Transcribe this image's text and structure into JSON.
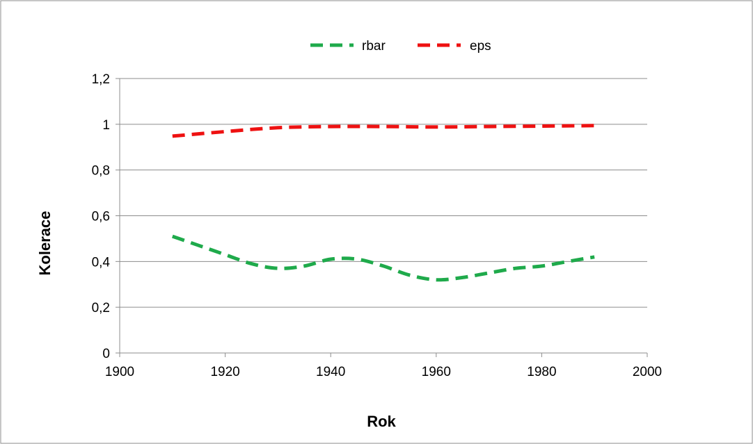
{
  "chart_data": {
    "type": "line",
    "title": "",
    "xlabel": "Rok",
    "ylabel": "Kolerace",
    "xlim": [
      1900,
      2000
    ],
    "ylim": [
      0,
      1.2
    ],
    "x_ticks": [
      1900,
      1920,
      1940,
      1960,
      1980,
      2000
    ],
    "y_ticks": [
      0,
      0.2,
      0.4,
      0.6,
      0.8,
      1,
      1.2
    ],
    "x_tick_labels": [
      "1900",
      "1920",
      "1940",
      "1960",
      "1980",
      "2000"
    ],
    "y_tick_labels": [
      "0",
      "0,2",
      "0,4",
      "0,6",
      "0,8",
      "1",
      "1,2"
    ],
    "grid": "horizontal",
    "legend_position": "top",
    "series": [
      {
        "name": "rbar",
        "color": "#1faa4b",
        "line_style": "dashed",
        "x": [
          1910,
          1915,
          1920,
          1925,
          1930,
          1935,
          1940,
          1945,
          1950,
          1955,
          1960,
          1965,
          1970,
          1975,
          1980,
          1985,
          1990
        ],
        "y": [
          0.51,
          0.47,
          0.43,
          0.39,
          0.37,
          0.38,
          0.41,
          0.41,
          0.38,
          0.34,
          0.32,
          0.33,
          0.35,
          0.37,
          0.38,
          0.4,
          0.42
        ]
      },
      {
        "name": "eps",
        "color": "#ee1111",
        "line_style": "dashed",
        "x": [
          1910,
          1920,
          1930,
          1940,
          1950,
          1960,
          1970,
          1980,
          1990
        ],
        "y": [
          0.948,
          0.968,
          0.985,
          0.99,
          0.99,
          0.988,
          0.99,
          0.992,
          0.994
        ]
      }
    ]
  }
}
